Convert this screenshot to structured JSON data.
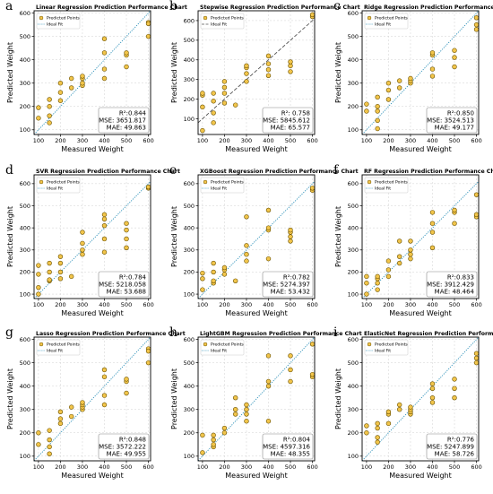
{
  "chart_data": [
    {
      "letter": "a",
      "type": "scatter",
      "title": "Linear Regression Prediction Performance Chart",
      "xlabel": "Measured Weight",
      "ylabel": "Predicted Weight",
      "xlim": [
        80,
        610
      ],
      "ylim": [
        80,
        610
      ],
      "xticks": [
        100,
        200,
        300,
        400,
        500,
        600
      ],
      "yticks": [
        100,
        200,
        300,
        400,
        500,
        600
      ],
      "legend": [
        "Predicted Points",
        "Ideal Fit"
      ],
      "legend_position": "top-left",
      "ideal_line_style": "dotted",
      "stats": {
        "r2": "R²:0.844",
        "mse": "MSE: 3651.817",
        "mae": "MAE: 49.863"
      },
      "points": [
        [
          100,
          150
        ],
        [
          100,
          195
        ],
        [
          150,
          130
        ],
        [
          150,
          160
        ],
        [
          150,
          200
        ],
        [
          150,
          230
        ],
        [
          200,
          225
        ],
        [
          200,
          260
        ],
        [
          200,
          300
        ],
        [
          250,
          280
        ],
        [
          250,
          320
        ],
        [
          300,
          290
        ],
        [
          300,
          300
        ],
        [
          300,
          320
        ],
        [
          300,
          330
        ],
        [
          400,
          320
        ],
        [
          400,
          360
        ],
        [
          400,
          430
        ],
        [
          400,
          490
        ],
        [
          500,
          370
        ],
        [
          500,
          420
        ],
        [
          500,
          430
        ],
        [
          600,
          500
        ],
        [
          600,
          560
        ],
        [
          600,
          555
        ]
      ]
    },
    {
      "letter": "b",
      "type": "scatter",
      "title": "Stepwise Regression Prediction Performance Chart",
      "xlabel": "Measured Weight",
      "ylabel": "Predicted Weight",
      "xlim": [
        80,
        610
      ],
      "ylim": [
        20,
        650
      ],
      "xticks": [
        100,
        200,
        300,
        400,
        500,
        600
      ],
      "yticks": [
        100,
        200,
        300,
        400,
        500,
        600
      ],
      "legend": [
        "Predicted Points",
        "Ideal Fit"
      ],
      "legend_position": "top-left",
      "ideal_line_style": "dashed",
      "stats": {
        "r2": "R²: 0.758",
        "mse": "MSE: 5845.612",
        "mae": "MAE: 65.577"
      },
      "points": [
        [
          100,
          40
        ],
        [
          100,
          160
        ],
        [
          100,
          220
        ],
        [
          100,
          230
        ],
        [
          150,
          80
        ],
        [
          150,
          130
        ],
        [
          150,
          190
        ],
        [
          150,
          230
        ],
        [
          200,
          180
        ],
        [
          200,
          230
        ],
        [
          200,
          260
        ],
        [
          200,
          290
        ],
        [
          250,
          170
        ],
        [
          300,
          290
        ],
        [
          300,
          330
        ],
        [
          300,
          360
        ],
        [
          300,
          370
        ],
        [
          400,
          320
        ],
        [
          400,
          350
        ],
        [
          400,
          380
        ],
        [
          400,
          420
        ],
        [
          500,
          340
        ],
        [
          500,
          370
        ],
        [
          500,
          390
        ],
        [
          600,
          620
        ],
        [
          600,
          630
        ]
      ]
    },
    {
      "letter": "c",
      "type": "scatter",
      "title": "Ridge Regression Prediction Performance Chart",
      "xlabel": "Measured Weight",
      "ylabel": "Predicted Weight",
      "xlim": [
        80,
        610
      ],
      "ylim": [
        80,
        610
      ],
      "xticks": [
        100,
        200,
        300,
        400,
        500,
        600
      ],
      "yticks": [
        100,
        200,
        300,
        400,
        500,
        600
      ],
      "legend": [
        "Predicted Points",
        "Ideal Fit"
      ],
      "legend_position": "top-left",
      "ideal_line_style": "dotted",
      "stats": {
        "r2": "R²:0.850",
        "mse": "MSE: 3524.513",
        "mae": "MAE: 49.177"
      },
      "points": [
        [
          100,
          180
        ],
        [
          100,
          210
        ],
        [
          150,
          105
        ],
        [
          150,
          140
        ],
        [
          150,
          180
        ],
        [
          150,
          200
        ],
        [
          150,
          240
        ],
        [
          200,
          230
        ],
        [
          200,
          270
        ],
        [
          200,
          300
        ],
        [
          250,
          280
        ],
        [
          250,
          310
        ],
        [
          300,
          300
        ],
        [
          300,
          310
        ],
        [
          300,
          320
        ],
        [
          400,
          330
        ],
        [
          400,
          360
        ],
        [
          400,
          420
        ],
        [
          400,
          430
        ],
        [
          500,
          370
        ],
        [
          500,
          410
        ],
        [
          500,
          440
        ],
        [
          600,
          530
        ],
        [
          600,
          550
        ],
        [
          600,
          580
        ]
      ]
    },
    {
      "letter": "d",
      "type": "scatter",
      "title": "SVR Regression Prediction Performance Chart",
      "xlabel": "Measured Weight",
      "ylabel": "Predicted Weight",
      "xlim": [
        80,
        610
      ],
      "ylim": [
        80,
        640
      ],
      "xticks": [
        100,
        200,
        300,
        400,
        500,
        600
      ],
      "yticks": [
        100,
        200,
        300,
        400,
        500,
        600
      ],
      "legend": [
        "Predicted Points",
        "Ideal Fit"
      ],
      "legend_position": "top-left",
      "ideal_line_style": "dotted",
      "stats": {
        "r2": "R²:0.784",
        "mse": "MSE: 5218.058",
        "mae": "MAE: 53.688"
      },
      "points": [
        [
          100,
          100
        ],
        [
          100,
          130
        ],
        [
          100,
          190
        ],
        [
          100,
          230
        ],
        [
          150,
          160
        ],
        [
          150,
          165
        ],
        [
          150,
          200
        ],
        [
          150,
          240
        ],
        [
          200,
          170
        ],
        [
          200,
          200
        ],
        [
          200,
          240
        ],
        [
          200,
          270
        ],
        [
          250,
          180
        ],
        [
          300,
          280
        ],
        [
          300,
          300
        ],
        [
          300,
          330
        ],
        [
          300,
          380
        ],
        [
          400,
          290
        ],
        [
          400,
          350
        ],
        [
          400,
          410
        ],
        [
          400,
          440
        ],
        [
          400,
          460
        ],
        [
          500,
          310
        ],
        [
          500,
          350
        ],
        [
          500,
          390
        ],
        [
          500,
          420
        ],
        [
          600,
          580
        ],
        [
          600,
          585
        ]
      ]
    },
    {
      "letter": "e",
      "type": "scatter",
      "title": "XGBoost Regression Prediction Performance Chart",
      "xlabel": "Measured Weight",
      "ylabel": "Predicted Weight",
      "xlim": [
        80,
        610
      ],
      "ylim": [
        80,
        640
      ],
      "xticks": [
        100,
        200,
        300,
        400,
        500,
        600
      ],
      "yticks": [
        100,
        200,
        300,
        400,
        500,
        600
      ],
      "legend": [
        "Predicted Points",
        "Ideal Fit"
      ],
      "legend_position": "top-left",
      "ideal_line_style": "dotted",
      "stats": {
        "r2": "R²:0.782",
        "mse": "MSE: 5274.397",
        "mae": "MAE: 53.432"
      },
      "points": [
        [
          100,
          120
        ],
        [
          100,
          170
        ],
        [
          100,
          195
        ],
        [
          150,
          150
        ],
        [
          150,
          160
        ],
        [
          150,
          200
        ],
        [
          150,
          240
        ],
        [
          200,
          190
        ],
        [
          200,
          210
        ],
        [
          200,
          220
        ],
        [
          250,
          160
        ],
        [
          300,
          250
        ],
        [
          300,
          280
        ],
        [
          300,
          320
        ],
        [
          300,
          450
        ],
        [
          400,
          260
        ],
        [
          400,
          390
        ],
        [
          400,
          400
        ],
        [
          400,
          480
        ],
        [
          500,
          340
        ],
        [
          500,
          360
        ],
        [
          500,
          380
        ],
        [
          500,
          390
        ],
        [
          600,
          570
        ],
        [
          600,
          580
        ]
      ]
    },
    {
      "letter": "f",
      "type": "scatter",
      "title": "RF Regression Prediction Performance Chart",
      "xlabel": "Measured Weight",
      "ylabel": "Predicted Weight",
      "xlim": [
        80,
        610
      ],
      "ylim": [
        80,
        640
      ],
      "xticks": [
        100,
        200,
        300,
        400,
        500,
        600
      ],
      "yticks": [
        100,
        200,
        300,
        400,
        500,
        600
      ],
      "legend": [
        "Predicted Points",
        "Ideal Fit"
      ],
      "legend_position": "top-left",
      "ideal_line_style": "dotted",
      "stats": {
        "r2": "R²:0.833",
        "mse": "MSE: 3912.429",
        "mae": "MAE: 48.464"
      },
      "points": [
        [
          100,
          100
        ],
        [
          100,
          150
        ],
        [
          100,
          180
        ],
        [
          150,
          120
        ],
        [
          150,
          150
        ],
        [
          150,
          170
        ],
        [
          150,
          180
        ],
        [
          200,
          180
        ],
        [
          200,
          210
        ],
        [
          200,
          250
        ],
        [
          250,
          240
        ],
        [
          250,
          270
        ],
        [
          250,
          340
        ],
        [
          300,
          260
        ],
        [
          300,
          280
        ],
        [
          300,
          300
        ],
        [
          300,
          340
        ],
        [
          400,
          310
        ],
        [
          400,
          380
        ],
        [
          400,
          420
        ],
        [
          400,
          470
        ],
        [
          500,
          420
        ],
        [
          500,
          470
        ],
        [
          500,
          480
        ],
        [
          600,
          450
        ],
        [
          600,
          460
        ],
        [
          600,
          550
        ]
      ]
    },
    {
      "letter": "g",
      "type": "scatter",
      "title": "Lasso Regression Prediction Performance Chart",
      "xlabel": "Measured Weight",
      "ylabel": "Predicted Weight",
      "xlim": [
        80,
        610
      ],
      "ylim": [
        80,
        610
      ],
      "xticks": [
        100,
        200,
        300,
        400,
        500,
        600
      ],
      "yticks": [
        100,
        200,
        300,
        400,
        500,
        600
      ],
      "legend": [
        "Predicted Points",
        "Ideal Fit"
      ],
      "legend_position": "top-left",
      "ideal_line_style": "dotted",
      "stats": {
        "r2": "R²:0.848",
        "mse": "MSE: 3572.222",
        "mae": "MAE: 49.955"
      },
      "points": [
        [
          100,
          150
        ],
        [
          100,
          200
        ],
        [
          150,
          110
        ],
        [
          150,
          140
        ],
        [
          150,
          170
        ],
        [
          150,
          210
        ],
        [
          200,
          240
        ],
        [
          200,
          260
        ],
        [
          200,
          290
        ],
        [
          250,
          270
        ],
        [
          250,
          310
        ],
        [
          300,
          300
        ],
        [
          300,
          310
        ],
        [
          300,
          320
        ],
        [
          300,
          330
        ],
        [
          400,
          320
        ],
        [
          400,
          360
        ],
        [
          400,
          440
        ],
        [
          400,
          470
        ],
        [
          500,
          370
        ],
        [
          500,
          420
        ],
        [
          500,
          430
        ],
        [
          600,
          500
        ],
        [
          600,
          560
        ],
        [
          600,
          550
        ]
      ]
    },
    {
      "letter": "h",
      "type": "scatter",
      "title": "LightGBM Regression Prediction Performance Chart",
      "xlabel": "Measured Weight",
      "ylabel": "Predicted Weight",
      "xlim": [
        80,
        610
      ],
      "ylim": [
        80,
        610
      ],
      "xticks": [
        100,
        200,
        300,
        400,
        500,
        600
      ],
      "yticks": [
        100,
        200,
        300,
        400,
        500,
        600
      ],
      "legend": [
        "Predicted Points",
        "Ideal Fit"
      ],
      "legend_position": "top-left",
      "ideal_line_style": "dotted",
      "stats": {
        "r2": "R²:0.804",
        "mse": "MSE: 4597.316",
        "mae": "MAE: 48.355"
      },
      "points": [
        [
          100,
          115
        ],
        [
          100,
          190
        ],
        [
          150,
          140
        ],
        [
          150,
          150
        ],
        [
          150,
          170
        ],
        [
          150,
          190
        ],
        [
          200,
          200
        ],
        [
          200,
          220
        ],
        [
          250,
          280
        ],
        [
          250,
          300
        ],
        [
          250,
          350
        ],
        [
          300,
          250
        ],
        [
          300,
          280
        ],
        [
          300,
          300
        ],
        [
          300,
          320
        ],
        [
          400,
          250
        ],
        [
          400,
          400
        ],
        [
          400,
          420
        ],
        [
          400,
          530
        ],
        [
          500,
          420
        ],
        [
          500,
          470
        ],
        [
          500,
          530
        ],
        [
          600,
          440
        ],
        [
          600,
          450
        ],
        [
          600,
          580
        ]
      ]
    },
    {
      "letter": "i",
      "type": "scatter",
      "title": "ElasticNet Regression Prediction Performance Chart",
      "xlabel": "Measured Weight",
      "ylabel": "Predicted Weight",
      "xlim": [
        80,
        610
      ],
      "ylim": [
        80,
        610
      ],
      "xticks": [
        100,
        200,
        300,
        400,
        500,
        600
      ],
      "yticks": [
        100,
        200,
        300,
        400,
        500,
        600
      ],
      "legend": [
        "Predicted Points",
        "Ideal Fit"
      ],
      "legend_position": "top-left",
      "ideal_line_style": "dotted",
      "stats": {
        "r2": "R²:0.776",
        "mse": "MSE: 5247.899",
        "mae": "MAE: 58.726"
      },
      "points": [
        [
          100,
          200
        ],
        [
          100,
          230
        ],
        [
          150,
          160
        ],
        [
          150,
          180
        ],
        [
          150,
          220
        ],
        [
          150,
          240
        ],
        [
          200,
          240
        ],
        [
          200,
          280
        ],
        [
          200,
          290
        ],
        [
          250,
          300
        ],
        [
          250,
          320
        ],
        [
          300,
          280
        ],
        [
          300,
          290
        ],
        [
          300,
          300
        ],
        [
          300,
          310
        ],
        [
          400,
          330
        ],
        [
          400,
          350
        ],
        [
          400,
          390
        ],
        [
          400,
          410
        ],
        [
          500,
          350
        ],
        [
          500,
          390
        ],
        [
          500,
          430
        ],
        [
          600,
          500
        ],
        [
          600,
          520
        ],
        [
          600,
          540
        ]
      ]
    }
  ],
  "colors": {
    "point_fill": "#f2c54b",
    "point_edge": "#6b5200",
    "ideal_line_dotted": "#2a8fb8",
    "ideal_line_dashed": "#555555",
    "grid": "#d0d0d0"
  }
}
